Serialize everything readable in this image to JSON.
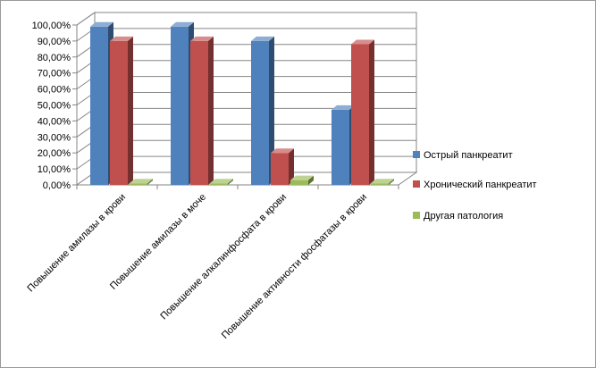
{
  "chart_data": {
    "type": "bar",
    "style": "3d-clustered-column",
    "categories": [
      "Повышение  амилазы в крови",
      "Повышение  амилазы в моче",
      "Повышение  алкалинфосфата в крови",
      "Повышение  активности фосфатазы в крови"
    ],
    "series": [
      {
        "name": "Острый панкреатит",
        "color": "#4F81BD",
        "values": [
          0.99,
          0.99,
          0.9,
          0.47
        ]
      },
      {
        "name": "Хронический панкреатит",
        "color": "#C0504D",
        "values": [
          0.9,
          0.9,
          0.2,
          0.88
        ]
      },
      {
        "name": "Другая патология",
        "color": "#9BBB59",
        "values": [
          0.01,
          0.01,
          0.03,
          0.01
        ]
      }
    ],
    "y_ticks": [
      "0,00%",
      "10,00%",
      "20,00%",
      "30,00%",
      "40,00%",
      "50,00%",
      "60,00%",
      "70,00%",
      "80,00%",
      "90,00%",
      "100,00%"
    ],
    "ylim": [
      0,
      1
    ],
    "grid": true,
    "legend_position": "right"
  }
}
